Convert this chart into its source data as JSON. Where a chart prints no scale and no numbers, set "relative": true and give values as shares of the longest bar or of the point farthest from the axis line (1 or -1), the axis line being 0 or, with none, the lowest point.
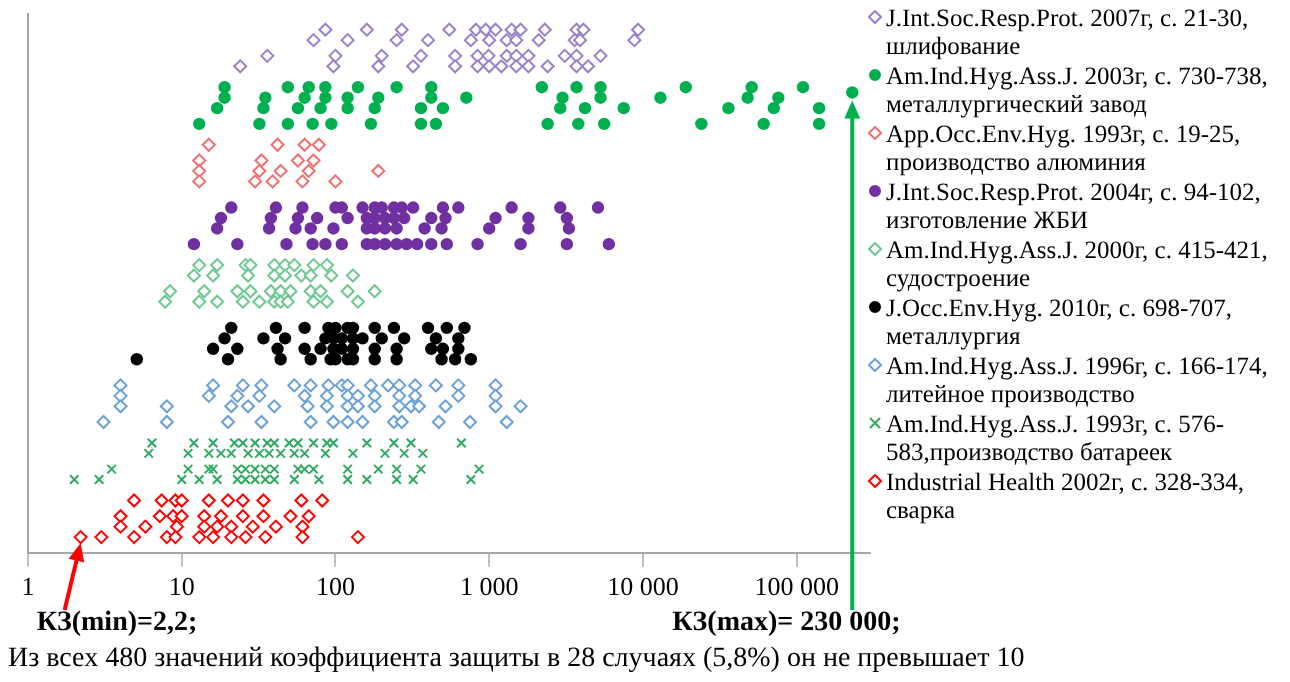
{
  "chart_data": {
    "type": "scatter",
    "log": "x",
    "relative": true,
    "xlim": [
      1,
      300000
    ],
    "xticks": [
      1,
      10,
      100,
      {
        "value": 1000,
        "label": "1 000"
      },
      {
        "value": 10000,
        "label": "10 000"
      },
      {
        "value": 100000,
        "label": "100 000"
      }
    ],
    "tick_labels": "x",
    "legend": "right",
    "series": [
      {
        "name": "J.Int.Soc.Resp.Prot. 2007г, с. 21-30, шлифование",
        "color": "#9b80c9",
        "marker": "diamond",
        "x": [
          86,
          160,
          270,
          550,
          820,
          950,
          1100,
          1400,
          1600,
          2300,
          3700,
          4100,
          9300,
          72,
          120,
          250,
          400,
          760,
          1000,
          1300,
          1500,
          2100,
          3600,
          3900,
          8800,
          36,
          100,
          200,
          360,
          600,
          840,
          990,
          1300,
          1500,
          1800,
          3100,
          3700,
          5300,
          24,
          97,
          190,
          320,
          600,
          840,
          1000,
          1200,
          1500,
          1800,
          2400,
          3700,
          4400
        ],
        "values": [
          1,
          1,
          1,
          1,
          1,
          1,
          1,
          1,
          1,
          1,
          1,
          1,
          1,
          0.98,
          0.98,
          0.98,
          0.98,
          0.98,
          0.98,
          0.98,
          0.98,
          0.98,
          0.98,
          0.98,
          0.98,
          0.95,
          0.95,
          0.95,
          0.95,
          0.95,
          0.95,
          0.95,
          0.95,
          0.95,
          0.95,
          0.95,
          0.95,
          0.95,
          0.93,
          0.93,
          0.93,
          0.93,
          0.93,
          0.93,
          0.93,
          0.93,
          0.93,
          0.93,
          0.93,
          0.93,
          0.93
        ]
      },
      {
        "name": "Am.Ind.Hyg.Ass.J. 2003г, с. 730-738, металлургический завод",
        "color": "#00b050",
        "marker": "circle",
        "x": [
          19,
          49,
          67,
          86,
          140,
          250,
          420,
          2200,
          3700,
          5300,
          19000,
          51000,
          110000,
          19,
          35,
          63,
          86,
          120,
          190,
          420,
          710,
          3000,
          5300,
          13000,
          48000,
          76000,
          17,
          34,
          57,
          80,
          120,
          180,
          360,
          500,
          2900,
          4200,
          7500,
          36000,
          71000,
          140000,
          13,
          32,
          49,
          71,
          94,
          170,
          360,
          450,
          2400,
          3800,
          5600,
          24000,
          61000,
          140000,
          230000
        ],
        "values": [
          0.89,
          0.89,
          0.89,
          0.89,
          0.89,
          0.89,
          0.89,
          0.89,
          0.89,
          0.89,
          0.89,
          0.89,
          0.89,
          0.87,
          0.87,
          0.87,
          0.87,
          0.87,
          0.87,
          0.87,
          0.87,
          0.87,
          0.87,
          0.87,
          0.87,
          0.87,
          0.85,
          0.85,
          0.85,
          0.85,
          0.85,
          0.85,
          0.85,
          0.85,
          0.85,
          0.85,
          0.85,
          0.85,
          0.85,
          0.85,
          0.82,
          0.82,
          0.82,
          0.82,
          0.82,
          0.82,
          0.82,
          0.82,
          0.82,
          0.82,
          0.82,
          0.82,
          0.82,
          0.82,
          0.88
        ]
      },
      {
        "name": "App.Occ.Env.Hyg. 1993г, с. 19-25, производство алюминия",
        "color": "#f07070",
        "marker": "diamond",
        "x": [
          15,
          42,
          63,
          78,
          13,
          33,
          57,
          72,
          13,
          32,
          44,
          67,
          190,
          13,
          30,
          39,
          61,
          100
        ],
        "values": [
          0.78,
          0.78,
          0.78,
          0.78,
          0.75,
          0.75,
          0.75,
          0.75,
          0.73,
          0.73,
          0.73,
          0.73,
          0.73,
          0.71,
          0.71,
          0.71,
          0.71,
          0.71
        ]
      },
      {
        "name": "J.Int.Soc.Resp.Prot. 2004г, с. 94-102, изготовление ЖБИ",
        "color": "#7030a0",
        "marker": "circle",
        "x": [
          21,
          41,
          61,
          100,
          110,
          150,
          180,
          200,
          240,
          270,
          320,
          500,
          630,
          1400,
          2900,
          5100,
          18,
          38,
          57,
          76,
          120,
          160,
          180,
          210,
          240,
          280,
          420,
          520,
          1100,
          1800,
          3200,
          17,
          37,
          55,
          69,
          97,
          160,
          180,
          210,
          250,
          380,
          490,
          1000,
          1800,
          3300,
          12,
          23,
          48,
          71,
          86,
          110,
          160,
          180,
          210,
          250,
          290,
          340,
          420,
          530,
          840,
          1600,
          3200,
          6000
        ],
        "values": [
          0.66,
          0.66,
          0.66,
          0.66,
          0.66,
          0.66,
          0.66,
          0.66,
          0.66,
          0.66,
          0.66,
          0.66,
          0.66,
          0.66,
          0.66,
          0.66,
          0.64,
          0.64,
          0.64,
          0.64,
          0.64,
          0.64,
          0.64,
          0.64,
          0.64,
          0.64,
          0.64,
          0.64,
          0.64,
          0.64,
          0.64,
          0.62,
          0.62,
          0.62,
          0.62,
          0.62,
          0.62,
          0.62,
          0.62,
          0.62,
          0.62,
          0.62,
          0.62,
          0.62,
          0.62,
          0.59,
          0.59,
          0.59,
          0.59,
          0.59,
          0.59,
          0.59,
          0.59,
          0.59,
          0.59,
          0.59,
          0.59,
          0.59,
          0.59,
          0.59,
          0.59,
          0.59,
          0.59
        ]
      },
      {
        "name": "Am.Ind.Hyg.Ass.J. 2000г, с. 415-421, судостроение",
        "color": "#6cc890",
        "marker": "diamond",
        "x": [
          13,
          17,
          26,
          28,
          40,
          47,
          54,
          72,
          88,
          12,
          16,
          27,
          40,
          47,
          60,
          69,
          94,
          130,
          8.4,
          14,
          23,
          28,
          38,
          44,
          51,
          69,
          80,
          120,
          180,
          7.8,
          13,
          17,
          25,
          32,
          40,
          44,
          49,
          72,
          88,
          140
        ],
        "values": [
          0.55,
          0.55,
          0.55,
          0.55,
          0.55,
          0.55,
          0.55,
          0.55,
          0.55,
          0.53,
          0.53,
          0.53,
          0.53,
          0.53,
          0.53,
          0.53,
          0.53,
          0.53,
          0.5,
          0.5,
          0.5,
          0.5,
          0.5,
          0.5,
          0.5,
          0.5,
          0.5,
          0.5,
          0.5,
          0.48,
          0.48,
          0.48,
          0.48,
          0.48,
          0.48,
          0.48,
          0.48,
          0.48,
          0.48,
          0.48
        ]
      },
      {
        "name": "J.Occ.Env.Hyg. 2010г, с. 698-707, металлургия",
        "color": "#000000",
        "marker": "circle",
        "x": [
          21,
          41,
          63,
          90,
          100,
          120,
          130,
          180,
          240,
          400,
          530,
          690,
          19,
          34,
          47,
          86,
          97,
          110,
          130,
          150,
          200,
          280,
          450,
          630,
          16,
          23,
          42,
          63,
          80,
          97,
          110,
          130,
          180,
          250,
          420,
          500,
          630,
          5.1,
          20,
          44,
          69,
          93,
          100,
          120,
          130,
          180,
          250,
          490,
          600,
          760
        ],
        "values": [
          0.43,
          0.43,
          0.43,
          0.43,
          0.43,
          0.43,
          0.43,
          0.43,
          0.43,
          0.43,
          0.43,
          0.43,
          0.41,
          0.41,
          0.41,
          0.41,
          0.41,
          0.41,
          0.41,
          0.41,
          0.41,
          0.41,
          0.41,
          0.41,
          0.39,
          0.39,
          0.39,
          0.39,
          0.39,
          0.39,
          0.39,
          0.39,
          0.39,
          0.39,
          0.39,
          0.39,
          0.39,
          0.37,
          0.37,
          0.37,
          0.37,
          0.37,
          0.37,
          0.37,
          0.37,
          0.37,
          0.37,
          0.37,
          0.37,
          0.37
        ]
      },
      {
        "name": "Am.Ind.Hyg.Ass.J. 1996г, с. 166-174, литейное производство",
        "color": "#6a9fd8",
        "marker": "diamond",
        "x": [
          4,
          16,
          25,
          33,
          54,
          69,
          90,
          110,
          120,
          170,
          220,
          260,
          330,
          450,
          630,
          1100,
          4,
          15,
          23,
          32,
          63,
          88,
          120,
          140,
          180,
          260,
          330,
          630,
          1100,
          4,
          8,
          21,
          27,
          40,
          66,
          88,
          120,
          140,
          180,
          260,
          310,
          350,
          520,
          1100,
          1600,
          3.1,
          8,
          20,
          33,
          69,
          97,
          120,
          150,
          240,
          270,
          470,
          750,
          1300
        ],
        "values": [
          0.32,
          0.32,
          0.32,
          0.32,
          0.32,
          0.32,
          0.32,
          0.32,
          0.32,
          0.32,
          0.32,
          0.32,
          0.32,
          0.32,
          0.32,
          0.32,
          0.3,
          0.3,
          0.3,
          0.3,
          0.3,
          0.3,
          0.3,
          0.3,
          0.3,
          0.3,
          0.3,
          0.3,
          0.3,
          0.28,
          0.28,
          0.28,
          0.28,
          0.28,
          0.28,
          0.28,
          0.28,
          0.28,
          0.28,
          0.28,
          0.28,
          0.28,
          0.28,
          0.28,
          0.28,
          0.25,
          0.25,
          0.25,
          0.25,
          0.25,
          0.25,
          0.25,
          0.25,
          0.25,
          0.25,
          0.25,
          0.25,
          0.25
        ]
      },
      {
        "name": "Am.Ind.Hyg.Ass.J. 1993г, с. 576-583,производство батареек",
        "color": "#2fa860",
        "marker": "cross",
        "x": [
          6.4,
          12,
          16,
          22,
          25,
          30,
          36,
          40,
          50,
          57,
          72,
          88,
          97,
          160,
          240,
          310,
          660,
          6.1,
          11,
          15,
          18,
          21,
          27,
          32,
          37,
          44,
          54,
          63,
          86,
          130,
          210,
          280,
          370,
          3.5,
          11,
          15,
          16,
          23,
          26,
          30,
          35,
          40,
          57,
          63,
          72,
          120,
          190,
          250,
          360,
          860,
          2,
          2.9,
          10,
          13,
          17,
          23,
          26,
          30,
          35,
          40,
          54,
          78,
          120,
          160,
          250,
          320,
          760
        ],
        "values": [
          0.21,
          0.21,
          0.21,
          0.21,
          0.21,
          0.21,
          0.21,
          0.21,
          0.21,
          0.21,
          0.21,
          0.21,
          0.21,
          0.21,
          0.21,
          0.21,
          0.21,
          0.19,
          0.19,
          0.19,
          0.19,
          0.19,
          0.19,
          0.19,
          0.19,
          0.19,
          0.19,
          0.19,
          0.19,
          0.19,
          0.19,
          0.19,
          0.19,
          0.16,
          0.16,
          0.16,
          0.16,
          0.16,
          0.16,
          0.16,
          0.16,
          0.16,
          0.16,
          0.16,
          0.16,
          0.16,
          0.16,
          0.16,
          0.16,
          0.16,
          0.14,
          0.14,
          0.14,
          0.14,
          0.14,
          0.14,
          0.14,
          0.14,
          0.14,
          0.14,
          0.14,
          0.14,
          0.14,
          0.14,
          0.14,
          0.14,
          0.14
        ]
      },
      {
        "name": "Industrial Health 2002г, с. 328-334, сварка",
        "color": "#ff0000",
        "marker": "diamond",
        "x": [
          4.9,
          7.4,
          9.1,
          10,
          15,
          20,
          25,
          34,
          60,
          82,
          4,
          7.2,
          8.8,
          10,
          14,
          18,
          25,
          34,
          51,
          67,
          4,
          5.8,
          9.3,
          14,
          17,
          21,
          29,
          41,
          61,
          2.2,
          3,
          4.9,
          8,
          9.1,
          13,
          16,
          21,
          26,
          35,
          61,
          140
        ],
        "values": [
          0.1,
          0.1,
          0.1,
          0.1,
          0.1,
          0.1,
          0.1,
          0.1,
          0.1,
          0.1,
          0.07,
          0.07,
          0.07,
          0.07,
          0.07,
          0.07,
          0.07,
          0.07,
          0.07,
          0.07,
          0.05,
          0.05,
          0.05,
          0.05,
          0.05,
          0.05,
          0.05,
          0.05,
          0.05,
          0.03,
          0.03,
          0.03,
          0.03,
          0.03,
          0.03,
          0.03,
          0.03,
          0.03,
          0.03,
          0.03,
          0.03
        ]
      }
    ],
    "annotations": [
      {
        "text": "КЗ(min)=2,2;",
        "x": 2.2,
        "y": 0.03
      },
      "КЗ(max)= 230 000;",
      "Из всех 480 значений коэффициента защиты в 28 случаях (5,8%) он не превышает 10"
    ]
  }
}
